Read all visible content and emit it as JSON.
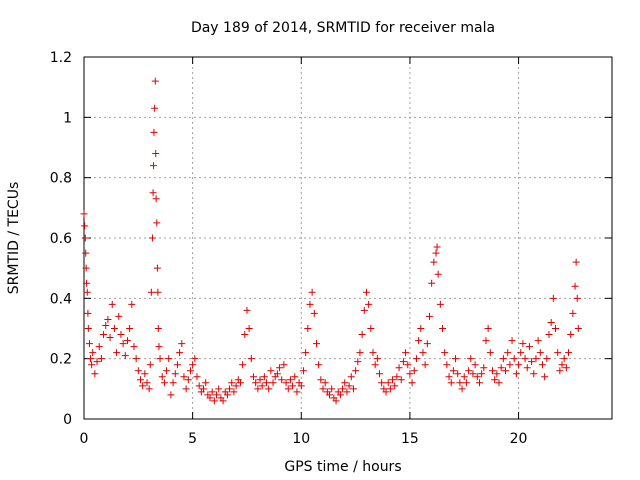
{
  "chart_data": {
    "type": "scatter",
    "title": "Day 189 of 2014, SRMTID for receiver mala",
    "xlabel": "GPS time / hours",
    "ylabel": "SRMTID / TECUs",
    "xlim": [
      0,
      24.3
    ],
    "ylim": [
      0,
      1.2
    ],
    "xticks": [
      0,
      5,
      10,
      15,
      20
    ],
    "xtick_labels": [
      "0",
      "5",
      "10",
      "15",
      "20"
    ],
    "yticks": [
      0,
      0.2,
      0.4,
      0.6,
      0.8,
      1.0,
      1.2
    ],
    "ytick_labels": [
      "0",
      "0.2",
      "0.4",
      "0.6",
      "0.8",
      "1",
      "1.2"
    ],
    "grid": true,
    "marker": "+",
    "colors": {
      "series": "#e00000"
    },
    "series": [
      {
        "name": "SRMTID",
        "points": [
          [
            0.0,
            0.68
          ],
          [
            0.03,
            0.64
          ],
          [
            0.06,
            0.6
          ],
          [
            0.08,
            0.55
          ],
          [
            0.1,
            0.5
          ],
          [
            0.12,
            0.45
          ],
          [
            0.15,
            0.42
          ],
          [
            0.18,
            0.35
          ],
          [
            0.2,
            0.3
          ],
          [
            0.25,
            0.25
          ],
          [
            0.3,
            0.2
          ],
          [
            0.35,
            0.18
          ],
          [
            0.4,
            0.22
          ],
          [
            0.5,
            0.15
          ],
          [
            0.6,
            0.19
          ],
          [
            0.7,
            0.24
          ],
          [
            0.8,
            0.2
          ],
          [
            0.9,
            0.28
          ],
          [
            1.0,
            0.31
          ],
          [
            1.1,
            0.33
          ],
          [
            1.2,
            0.27
          ],
          [
            1.3,
            0.38
          ],
          [
            1.4,
            0.3
          ],
          [
            1.5,
            0.22
          ],
          [
            1.6,
            0.34
          ],
          [
            1.7,
            0.28
          ],
          [
            1.8,
            0.25
          ],
          [
            1.9,
            0.21
          ],
          [
            2.0,
            0.26
          ],
          [
            2.1,
            0.3
          ],
          [
            2.2,
            0.38
          ],
          [
            2.3,
            0.24
          ],
          [
            2.4,
            0.2
          ],
          [
            2.5,
            0.16
          ],
          [
            2.6,
            0.13
          ],
          [
            2.7,
            0.11
          ],
          [
            2.8,
            0.15
          ],
          [
            2.9,
            0.12
          ],
          [
            3.0,
            0.1
          ],
          [
            3.05,
            0.18
          ],
          [
            3.1,
            0.42
          ],
          [
            3.15,
            0.6
          ],
          [
            3.18,
            0.75
          ],
          [
            3.2,
            0.84
          ],
          [
            3.22,
            0.95
          ],
          [
            3.25,
            1.03
          ],
          [
            3.28,
            1.12
          ],
          [
            3.3,
            0.88
          ],
          [
            3.32,
            0.73
          ],
          [
            3.35,
            0.65
          ],
          [
            3.38,
            0.5
          ],
          [
            3.4,
            0.42
          ],
          [
            3.42,
            0.3
          ],
          [
            3.45,
            0.24
          ],
          [
            3.5,
            0.2
          ],
          [
            3.6,
            0.14
          ],
          [
            3.7,
            0.12
          ],
          [
            3.8,
            0.16
          ],
          [
            3.9,
            0.2
          ],
          [
            4.0,
            0.08
          ],
          [
            4.1,
            0.12
          ],
          [
            4.2,
            0.15
          ],
          [
            4.3,
            0.18
          ],
          [
            4.4,
            0.22
          ],
          [
            4.5,
            0.25
          ],
          [
            4.6,
            0.14
          ],
          [
            4.7,
            0.1
          ],
          [
            4.8,
            0.13
          ],
          [
            4.9,
            0.16
          ],
          [
            5.0,
            0.18
          ],
          [
            5.1,
            0.2
          ],
          [
            5.2,
            0.14
          ],
          [
            5.3,
            0.11
          ],
          [
            5.4,
            0.09
          ],
          [
            5.5,
            0.1
          ],
          [
            5.6,
            0.12
          ],
          [
            5.7,
            0.08
          ],
          [
            5.8,
            0.07
          ],
          [
            5.9,
            0.09
          ],
          [
            6.0,
            0.06
          ],
          [
            6.1,
            0.08
          ],
          [
            6.2,
            0.1
          ],
          [
            6.3,
            0.07
          ],
          [
            6.4,
            0.06
          ],
          [
            6.5,
            0.09
          ],
          [
            6.6,
            0.08
          ],
          [
            6.7,
            0.1
          ],
          [
            6.8,
            0.12
          ],
          [
            6.9,
            0.09
          ],
          [
            7.0,
            0.11
          ],
          [
            7.1,
            0.13
          ],
          [
            7.2,
            0.12
          ],
          [
            7.3,
            0.18
          ],
          [
            7.4,
            0.28
          ],
          [
            7.5,
            0.36
          ],
          [
            7.6,
            0.3
          ],
          [
            7.7,
            0.2
          ],
          [
            7.8,
            0.14
          ],
          [
            7.9,
            0.12
          ],
          [
            8.0,
            0.1
          ],
          [
            8.1,
            0.13
          ],
          [
            8.2,
            0.11
          ],
          [
            8.3,
            0.14
          ],
          [
            8.4,
            0.12
          ],
          [
            8.5,
            0.1
          ],
          [
            8.6,
            0.16
          ],
          [
            8.7,
            0.12
          ],
          [
            8.8,
            0.14
          ],
          [
            8.9,
            0.15
          ],
          [
            9.0,
            0.17
          ],
          [
            9.1,
            0.13
          ],
          [
            9.2,
            0.18
          ],
          [
            9.3,
            0.12
          ],
          [
            9.4,
            0.1
          ],
          [
            9.5,
            0.13
          ],
          [
            9.6,
            0.11
          ],
          [
            9.7,
            0.14
          ],
          [
            9.8,
            0.09
          ],
          [
            9.9,
            0.12
          ],
          [
            10.0,
            0.11
          ],
          [
            10.1,
            0.16
          ],
          [
            10.2,
            0.22
          ],
          [
            10.3,
            0.3
          ],
          [
            10.4,
            0.38
          ],
          [
            10.5,
            0.42
          ],
          [
            10.6,
            0.35
          ],
          [
            10.7,
            0.25
          ],
          [
            10.8,
            0.18
          ],
          [
            10.9,
            0.13
          ],
          [
            11.0,
            0.1
          ],
          [
            11.1,
            0.12
          ],
          [
            11.2,
            0.09
          ],
          [
            11.3,
            0.08
          ],
          [
            11.4,
            0.1
          ],
          [
            11.5,
            0.07
          ],
          [
            11.6,
            0.06
          ],
          [
            11.7,
            0.09
          ],
          [
            11.8,
            0.08
          ],
          [
            11.9,
            0.1
          ],
          [
            12.0,
            0.12
          ],
          [
            12.1,
            0.09
          ],
          [
            12.2,
            0.11
          ],
          [
            12.3,
            0.14
          ],
          [
            12.4,
            0.1
          ],
          [
            12.5,
            0.16
          ],
          [
            12.6,
            0.19
          ],
          [
            12.7,
            0.22
          ],
          [
            12.8,
            0.28
          ],
          [
            12.9,
            0.36
          ],
          [
            13.0,
            0.42
          ],
          [
            13.1,
            0.38
          ],
          [
            13.2,
            0.3
          ],
          [
            13.3,
            0.22
          ],
          [
            13.4,
            0.18
          ],
          [
            13.5,
            0.2
          ],
          [
            13.6,
            0.15
          ],
          [
            13.7,
            0.12
          ],
          [
            13.8,
            0.1
          ],
          [
            13.9,
            0.09
          ],
          [
            14.0,
            0.12
          ],
          [
            14.1,
            0.1
          ],
          [
            14.2,
            0.13
          ],
          [
            14.3,
            0.11
          ],
          [
            14.4,
            0.14
          ],
          [
            14.5,
            0.17
          ],
          [
            14.6,
            0.13
          ],
          [
            14.7,
            0.19
          ],
          [
            14.8,
            0.22
          ],
          [
            14.9,
            0.18
          ],
          [
            15.0,
            0.15
          ],
          [
            15.1,
            0.12
          ],
          [
            15.2,
            0.16
          ],
          [
            15.3,
            0.2
          ],
          [
            15.4,
            0.26
          ],
          [
            15.5,
            0.3
          ],
          [
            15.6,
            0.22
          ],
          [
            15.7,
            0.18
          ],
          [
            15.8,
            0.25
          ],
          [
            15.9,
            0.34
          ],
          [
            16.0,
            0.45
          ],
          [
            16.1,
            0.52
          ],
          [
            16.2,
            0.55
          ],
          [
            16.25,
            0.57
          ],
          [
            16.3,
            0.48
          ],
          [
            16.4,
            0.38
          ],
          [
            16.5,
            0.3
          ],
          [
            16.6,
            0.22
          ],
          [
            16.7,
            0.18
          ],
          [
            16.8,
            0.14
          ],
          [
            16.9,
            0.12
          ],
          [
            17.0,
            0.16
          ],
          [
            17.1,
            0.2
          ],
          [
            17.2,
            0.15
          ],
          [
            17.3,
            0.12
          ],
          [
            17.4,
            0.1
          ],
          [
            17.5,
            0.14
          ],
          [
            17.6,
            0.12
          ],
          [
            17.7,
            0.16
          ],
          [
            17.8,
            0.2
          ],
          [
            17.9,
            0.15
          ],
          [
            18.0,
            0.18
          ],
          [
            18.1,
            0.14
          ],
          [
            18.2,
            0.12
          ],
          [
            18.3,
            0.15
          ],
          [
            18.4,
            0.17
          ],
          [
            18.5,
            0.26
          ],
          [
            18.6,
            0.3
          ],
          [
            18.7,
            0.22
          ],
          [
            18.8,
            0.16
          ],
          [
            18.9,
            0.13
          ],
          [
            19.0,
            0.15
          ],
          [
            19.1,
            0.12
          ],
          [
            19.2,
            0.17
          ],
          [
            19.3,
            0.2
          ],
          [
            19.4,
            0.16
          ],
          [
            19.5,
            0.22
          ],
          [
            19.6,
            0.18
          ],
          [
            19.7,
            0.26
          ],
          [
            19.8,
            0.2
          ],
          [
            19.9,
            0.15
          ],
          [
            20.0,
            0.18
          ],
          [
            20.1,
            0.22
          ],
          [
            20.2,
            0.25
          ],
          [
            20.3,
            0.2
          ],
          [
            20.4,
            0.17
          ],
          [
            20.5,
            0.24
          ],
          [
            20.6,
            0.19
          ],
          [
            20.7,
            0.15
          ],
          [
            20.8,
            0.2
          ],
          [
            20.9,
            0.26
          ],
          [
            21.0,
            0.22
          ],
          [
            21.1,
            0.18
          ],
          [
            21.2,
            0.14
          ],
          [
            21.3,
            0.2
          ],
          [
            21.4,
            0.28
          ],
          [
            21.5,
            0.32
          ],
          [
            21.6,
            0.4
          ],
          [
            21.7,
            0.3
          ],
          [
            21.8,
            0.22
          ],
          [
            21.9,
            0.16
          ],
          [
            22.0,
            0.18
          ],
          [
            22.1,
            0.2
          ],
          [
            22.2,
            0.17
          ],
          [
            22.3,
            0.22
          ],
          [
            22.4,
            0.28
          ],
          [
            22.5,
            0.35
          ],
          [
            22.6,
            0.44
          ],
          [
            22.65,
            0.52
          ],
          [
            22.7,
            0.4
          ],
          [
            22.75,
            0.3
          ]
        ]
      }
    ]
  }
}
